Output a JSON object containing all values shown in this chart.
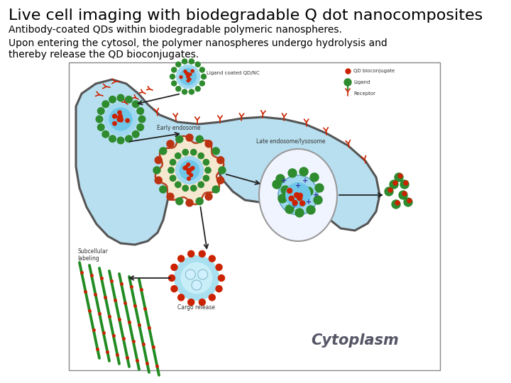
{
  "title": "Live cell imaging with biodegradable Q dot nanocomposites",
  "subtitle": "Antibody-coated QDs within biodegradable polymeric nanospheres.",
  "body_text": "Upon entering the cytosol, the polymer nanospheres undergo hydrolysis and\nthereby release the QD bioconjugates.",
  "title_fontsize": 16,
  "subtitle_fontsize": 10,
  "body_fontsize": 10,
  "title_color": "#000000",
  "bg_color": "#ffffff",
  "fig_width": 7.2,
  "fig_height": 5.4,
  "dpi": 100,
  "green_color": "#2e8b2e",
  "red_color": "#cc2200",
  "light_blue": "#b8dff0",
  "cell_edge": "#555555",
  "cytoplasm_label": "Cytoplasm"
}
